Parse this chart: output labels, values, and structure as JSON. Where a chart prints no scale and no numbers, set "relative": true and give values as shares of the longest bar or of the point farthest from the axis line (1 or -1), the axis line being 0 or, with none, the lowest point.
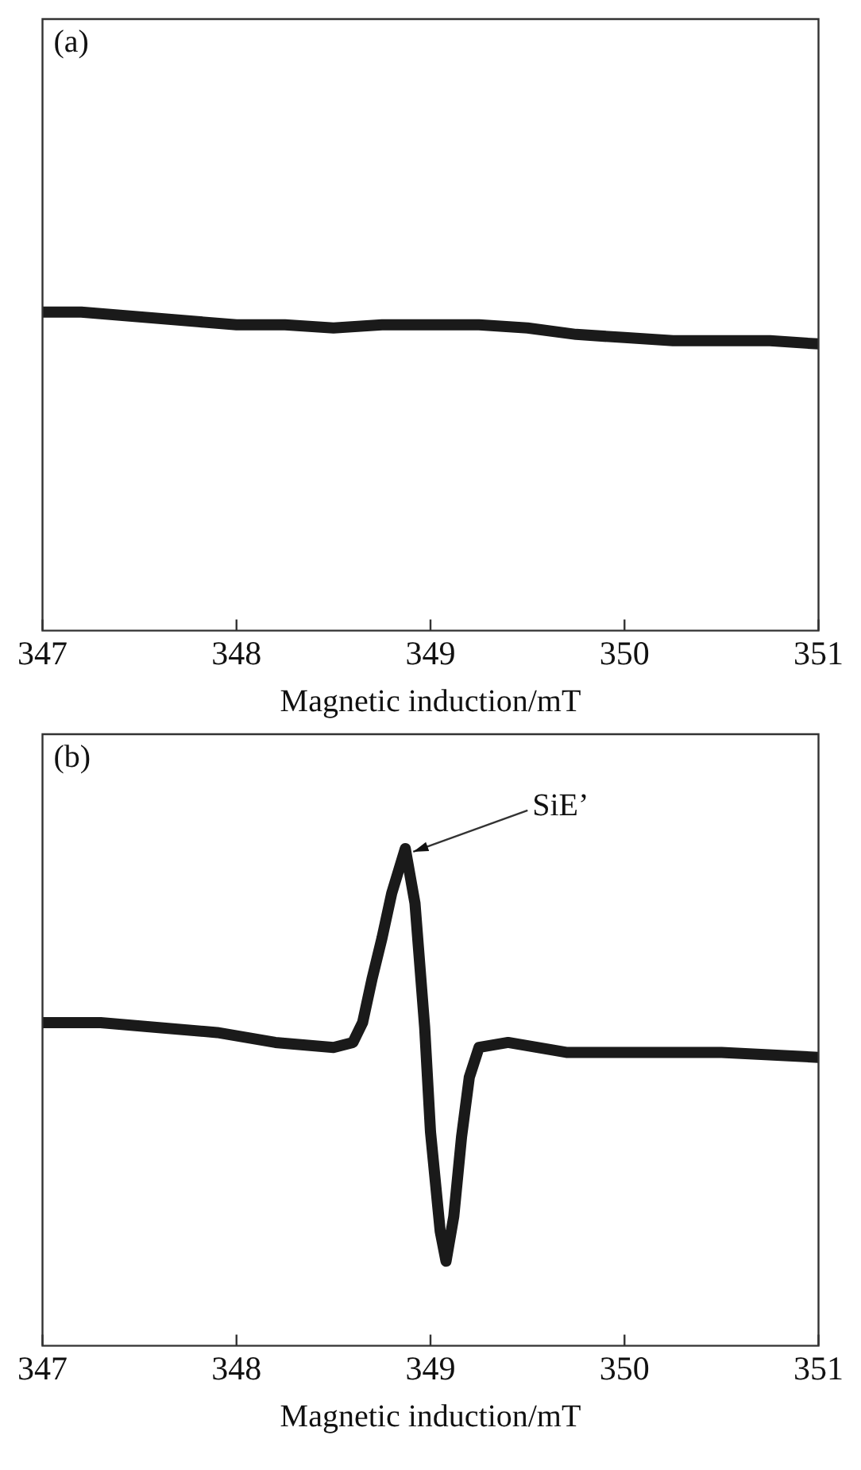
{
  "chart_data": [
    {
      "type": "line",
      "title": "(a)",
      "xlabel": "Magnetic induction/mT",
      "relative": true,
      "tick_labels": "x",
      "xlim": [
        347,
        351
      ],
      "xticks": [
        347,
        348,
        349,
        350,
        351
      ],
      "x": [
        347,
        347.2,
        347.4,
        347.6,
        347.8,
        348,
        348.25,
        348.5,
        348.75,
        349,
        349.25,
        349.5,
        349.75,
        350,
        350.25,
        350.5,
        350.75,
        351
      ],
      "series": [
        {
          "color": "#1a1a1a",
          "values": [
            1,
            1,
            0.99,
            0.98,
            0.97,
            0.96,
            0.96,
            0.95,
            0.96,
            0.96,
            0.96,
            0.95,
            0.93,
            0.92,
            0.91,
            0.91,
            0.91,
            0.9
          ]
        }
      ]
    },
    {
      "type": "line",
      "title": "(b)",
      "xlabel": "Magnetic induction/mT",
      "relative": true,
      "tick_labels": "x",
      "xlim": [
        347,
        351
      ],
      "xticks": [
        347,
        348,
        349,
        350,
        351
      ],
      "x": [
        347,
        347.3,
        347.6,
        347.9,
        348.2,
        348.5,
        348.6,
        348.65,
        348.7,
        348.75,
        348.8,
        348.87,
        348.92,
        348.97,
        349,
        349.05,
        349.08,
        349.12,
        349.16,
        349.2,
        349.25,
        349.4,
        349.7,
        350,
        350.5,
        351
      ],
      "series": [
        {
          "color": "#1a1a1a",
          "values": [
            0.65,
            0.65,
            0.64,
            0.63,
            0.61,
            0.6,
            0.61,
            0.65,
            0.74,
            0.82,
            0.91,
            1,
            0.89,
            0.64,
            0.43,
            0.23,
            0.17,
            0.26,
            0.42,
            0.54,
            0.6,
            0.61,
            0.59,
            0.59,
            0.59,
            0.58
          ]
        }
      ],
      "annotations": [
        {
          "text": "SiE’",
          "x": 348.87,
          "y": 1
        }
      ]
    }
  ]
}
